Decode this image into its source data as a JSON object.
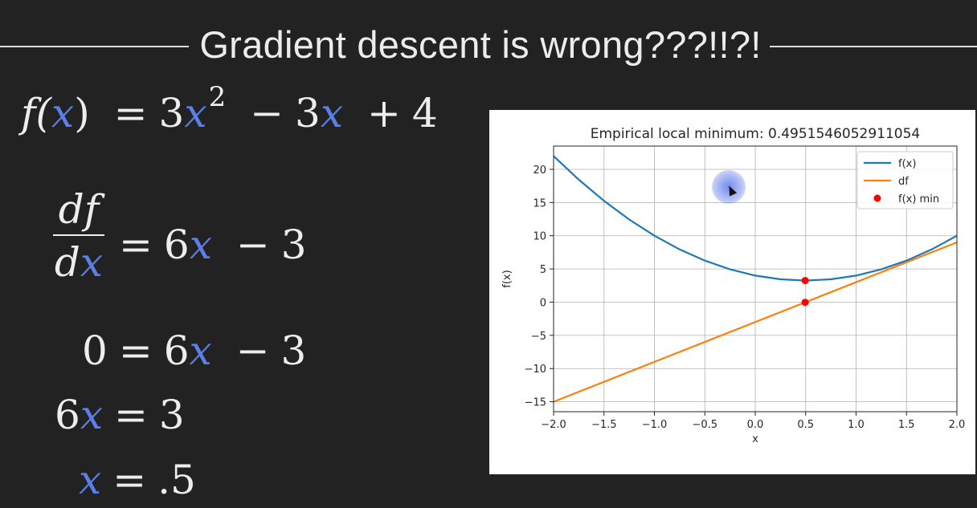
{
  "slide": {
    "title": "Gradient descent is wrong???!!?!"
  },
  "equations": {
    "line1": {
      "lhs": "f(",
      "var": "x",
      "rhs_open": ")",
      "eq": "=",
      "coef1": "3",
      "var2": "x",
      "exp": "2",
      "minus": "−",
      "coef2": "3",
      "var3": "x",
      "plus": "+",
      "const": "4"
    },
    "line2": {
      "num": "df",
      "den_d": "d",
      "den_var": "x",
      "eq": "=",
      "coef": "6",
      "var": "x",
      "minus": "−",
      "const": "3"
    },
    "line3": {
      "lhs": "0",
      "eq": "=",
      "coef": "6",
      "var": "x",
      "minus": "−",
      "const": "3"
    },
    "line4": {
      "coef": "6",
      "var": "x",
      "eq": "=",
      "rhs": "3"
    },
    "line5": {
      "var": "x",
      "eq": "=",
      "rhs": ".5"
    }
  },
  "chart_data": {
    "type": "line",
    "title": "Empirical local minimum: 0.4951546052911054",
    "xlabel": "x",
    "ylabel": "f(x)",
    "xlim": [
      -2.0,
      2.0
    ],
    "ylim": [
      -16.5,
      23.5
    ],
    "xticks": [
      -2.0,
      -1.5,
      -1.0,
      -0.5,
      0.0,
      0.5,
      1.0,
      1.5,
      2.0
    ],
    "xtick_labels": [
      "−2.0",
      "−1.5",
      "−1.0",
      "−0.5",
      "0.0",
      "0.5",
      "1.0",
      "1.5",
      "2.0"
    ],
    "yticks": [
      20,
      15,
      10,
      5,
      0,
      -5,
      -10,
      -15
    ],
    "ytick_labels": [
      "20",
      "15",
      "10",
      "5",
      "0",
      "−5",
      "−10",
      "−15"
    ],
    "grid": true,
    "legend_position": "top-right",
    "series": [
      {
        "name": "f(x)",
        "color": "#1f77b4",
        "kind": "line",
        "x": [
          -2.0,
          -1.75,
          -1.5,
          -1.25,
          -1.0,
          -0.75,
          -0.5,
          -0.25,
          0.0,
          0.25,
          0.5,
          0.75,
          1.0,
          1.25,
          1.5,
          1.75,
          2.0
        ],
        "y": [
          22.0,
          18.44,
          15.25,
          12.44,
          10.0,
          7.94,
          6.25,
          4.94,
          4.0,
          3.44,
          3.25,
          3.44,
          4.0,
          4.94,
          6.25,
          7.94,
          10.0
        ]
      },
      {
        "name": "df",
        "color": "#ff7f0e",
        "kind": "line",
        "x": [
          -2.0,
          2.0
        ],
        "y": [
          -15.0,
          9.0
        ]
      },
      {
        "name": "f(x) min",
        "color": "#ff0000",
        "kind": "scatter",
        "x": [
          0.4952,
          0.4952
        ],
        "y": [
          3.25,
          -0.03
        ]
      }
    ]
  }
}
